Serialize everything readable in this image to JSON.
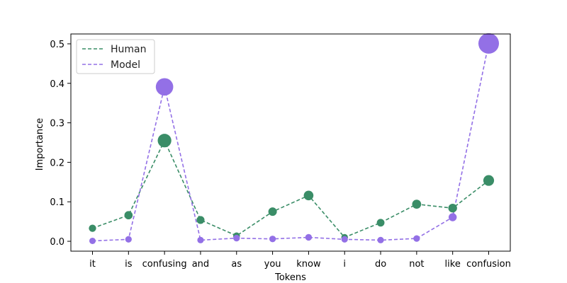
{
  "chart_data": {
    "type": "line",
    "xlabel": "Tokens",
    "ylabel": "Importance",
    "categories": [
      "it",
      "is",
      "confusing",
      "and",
      "as",
      "you",
      "know",
      "i",
      "do",
      "not",
      "like",
      "confusion"
    ],
    "ylim": [
      -0.025,
      0.525
    ],
    "yticks": [
      0.0,
      0.1,
      0.2,
      0.3,
      0.4,
      0.5
    ],
    "ytick_labels": [
      "0.0",
      "0.1",
      "0.2",
      "0.3",
      "0.4",
      "0.5"
    ],
    "grid": false,
    "legend_position": "top-left",
    "series": [
      {
        "name": "Human",
        "color": "#3a8d67",
        "line_style": "dashed",
        "values": [
          0.033,
          0.066,
          0.255,
          0.054,
          0.014,
          0.075,
          0.116,
          0.01,
          0.047,
          0.094,
          0.084,
          0.154
        ]
      },
      {
        "name": "Model",
        "color": "#9370e6",
        "line_style": "dashed",
        "values": [
          0.001,
          0.005,
          0.391,
          0.003,
          0.008,
          0.006,
          0.01,
          0.005,
          0.003,
          0.007,
          0.061,
          0.501
        ]
      }
    ]
  }
}
